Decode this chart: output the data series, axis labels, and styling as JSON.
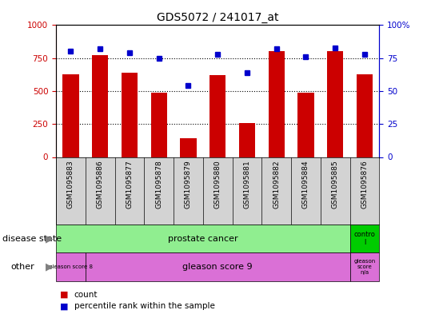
{
  "title": "GDS5072 / 241017_at",
  "samples": [
    "GSM1095883",
    "GSM1095886",
    "GSM1095877",
    "GSM1095878",
    "GSM1095879",
    "GSM1095880",
    "GSM1095881",
    "GSM1095882",
    "GSM1095884",
    "GSM1095885",
    "GSM1095876"
  ],
  "counts": [
    630,
    770,
    640,
    490,
    140,
    620,
    255,
    800,
    490,
    800,
    630
  ],
  "percentiles": [
    80,
    82,
    79,
    75,
    54,
    78,
    64,
    82,
    76,
    83,
    78
  ],
  "ylim_left": [
    0,
    1000
  ],
  "ylim_right": [
    0,
    100
  ],
  "yticks_left": [
    0,
    250,
    500,
    750,
    1000
  ],
  "yticks_right": [
    0,
    25,
    50,
    75,
    100
  ],
  "bar_color": "#cc0000",
  "dot_color": "#0000cc",
  "sample_bg_color": "#d3d3d3",
  "disease_state_color": "#90ee90",
  "control_color": "#00cc00",
  "other_color": "#da70d6",
  "legend_items": [
    {
      "label": "count",
      "color": "#cc0000"
    },
    {
      "label": "percentile rank within the sample",
      "color": "#0000cc"
    }
  ],
  "axis_left_color": "#cc0000",
  "axis_right_color": "#0000cc",
  "arrow_color": "#808080"
}
